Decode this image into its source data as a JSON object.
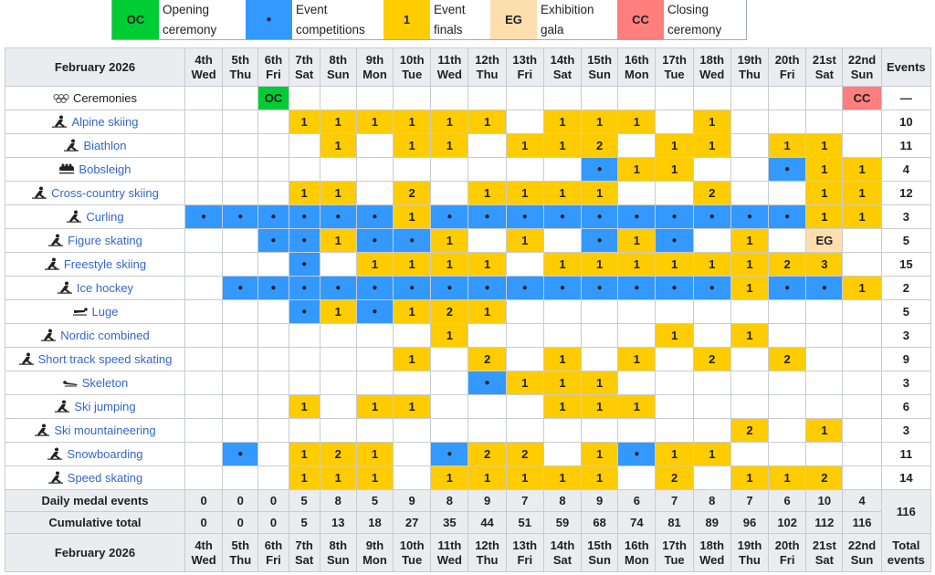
{
  "legend": [
    {
      "code": "OC",
      "line1": "Opening",
      "line2": "ceremony",
      "color": "#00cc33"
    },
    {
      "code": "●",
      "line1": "Event",
      "line2": "competitions",
      "color": "#3399ff"
    },
    {
      "code": "1",
      "line1": "Event",
      "line2": "finals",
      "color": "#ffcc00"
    },
    {
      "code": "EG",
      "line1": "Exhibition",
      "line2": "gala",
      "color": "#ffdead"
    },
    {
      "code": "CC",
      "line1": "Closing",
      "line2": "ceremony",
      "color": "#ff7f7f"
    }
  ],
  "month_label": "February 2026",
  "days": [
    {
      "d": "4th",
      "w": "Wed"
    },
    {
      "d": "5th",
      "w": "Thu"
    },
    {
      "d": "6th",
      "w": "Fri"
    },
    {
      "d": "7th",
      "w": "Sat"
    },
    {
      "d": "8th",
      "w": "Sun"
    },
    {
      "d": "9th",
      "w": "Mon"
    },
    {
      "d": "10th",
      "w": "Tue"
    },
    {
      "d": "11th",
      "w": "Wed"
    },
    {
      "d": "12th",
      "w": "Thu"
    },
    {
      "d": "13th",
      "w": "Fri"
    },
    {
      "d": "14th",
      "w": "Sat"
    },
    {
      "d": "15th",
      "w": "Sun"
    },
    {
      "d": "16th",
      "w": "Mon"
    },
    {
      "d": "17th",
      "w": "Tue"
    },
    {
      "d": "18th",
      "w": "Wed"
    },
    {
      "d": "19th",
      "w": "Thu"
    },
    {
      "d": "20th",
      "w": "Fri"
    },
    {
      "d": "21st",
      "w": "Sat"
    },
    {
      "d": "22nd",
      "w": "Sun"
    }
  ],
  "events_header": "Events",
  "total_events_header": {
    "l1": "Total",
    "l2": "events"
  },
  "sports": [
    {
      "name": "Ceremonies",
      "icon": "olympic-rings-icon",
      "link": false,
      "cells": [
        "",
        "",
        "OC",
        "",
        "",
        "",
        "",
        "",
        "",
        "",
        "",
        "",
        "",
        "",
        "",
        "",
        "",
        "",
        "CC"
      ],
      "total": "—"
    },
    {
      "name": "Alpine skiing",
      "icon": "alpine-skiing-icon",
      "link": true,
      "cells": [
        "",
        "",
        "",
        "1",
        "1",
        "1",
        "1",
        "1",
        "1",
        "",
        "1",
        "1",
        "1",
        "",
        "1",
        "",
        "",
        "",
        ""
      ],
      "total": "10"
    },
    {
      "name": "Biathlon",
      "icon": "biathlon-icon",
      "link": true,
      "cells": [
        "",
        "",
        "",
        "",
        "1",
        "",
        "1",
        "1",
        "",
        "1",
        "1",
        "2",
        "",
        "1",
        "1",
        "",
        "1",
        "1",
        ""
      ],
      "total": "11"
    },
    {
      "name": "Bobsleigh",
      "icon": "bobsleigh-icon",
      "link": true,
      "cells": [
        "",
        "",
        "",
        "",
        "",
        "",
        "",
        "",
        "",
        "",
        "",
        "●",
        "1",
        "1",
        "",
        "",
        "●",
        "1",
        "1"
      ],
      "total": "4"
    },
    {
      "name": "Cross-country skiing",
      "icon": "cross-country-skiing-icon",
      "link": true,
      "cells": [
        "",
        "",
        "",
        "1",
        "1",
        "",
        "2",
        "",
        "1",
        "1",
        "1",
        "1",
        "",
        "",
        "2",
        "",
        "",
        "1",
        "1"
      ],
      "total": "12"
    },
    {
      "name": "Curling",
      "icon": "curling-icon",
      "link": true,
      "cells": [
        "●",
        "●",
        "●",
        "●",
        "●",
        "●",
        "1",
        "●",
        "●",
        "●",
        "●",
        "●",
        "●",
        "●",
        "●",
        "●",
        "●",
        "1",
        "1"
      ],
      "total": "3"
    },
    {
      "name": "Figure skating",
      "icon": "figure-skating-icon",
      "link": true,
      "cells": [
        "",
        "",
        "●",
        "●",
        "1",
        "●",
        "●",
        "1",
        "",
        "1",
        "",
        "●",
        "1",
        "●",
        "",
        "1",
        "",
        "EG",
        ""
      ],
      "total": "5"
    },
    {
      "name": "Freestyle skiing",
      "icon": "freestyle-skiing-icon",
      "link": true,
      "cells": [
        "",
        "",
        "",
        "●",
        "",
        "1",
        "1",
        "1",
        "1",
        "",
        "1",
        "1",
        "1",
        "1",
        "1",
        "1",
        "2",
        "3",
        ""
      ],
      "total": "15"
    },
    {
      "name": "Ice hockey",
      "icon": "ice-hockey-icon",
      "link": true,
      "cells": [
        "",
        "●",
        "●",
        "●",
        "●",
        "●",
        "●",
        "●",
        "●",
        "●",
        "●",
        "●",
        "●",
        "●",
        "●",
        "1",
        "●",
        "●",
        "1"
      ],
      "total": "2"
    },
    {
      "name": "Luge",
      "icon": "luge-icon",
      "link": true,
      "cells": [
        "",
        "",
        "",
        "●",
        "1",
        "●",
        "1",
        "2",
        "1",
        "",
        "",
        "",
        "",
        "",
        "",
        "",
        "",
        "",
        ""
      ],
      "total": "5"
    },
    {
      "name": "Nordic combined",
      "icon": "nordic-combined-icon",
      "link": true,
      "cells": [
        "",
        "",
        "",
        "",
        "",
        "",
        "",
        "1",
        "",
        "",
        "",
        "",
        "",
        "1",
        "",
        "1",
        "",
        "",
        ""
      ],
      "total": "3"
    },
    {
      "name": "Short track speed skating",
      "icon": "short-track-icon",
      "link": true,
      "cells": [
        "",
        "",
        "",
        "",
        "",
        "",
        "1",
        "",
        "2",
        "",
        "1",
        "",
        "1",
        "",
        "2",
        "",
        "2",
        "",
        ""
      ],
      "total": "9"
    },
    {
      "name": "Skeleton",
      "icon": "skeleton-icon",
      "link": true,
      "cells": [
        "",
        "",
        "",
        "",
        "",
        "",
        "",
        "",
        "●",
        "1",
        "1",
        "1",
        "",
        "",
        "",
        "",
        "",
        "",
        ""
      ],
      "total": "3"
    },
    {
      "name": "Ski jumping",
      "icon": "ski-jumping-icon",
      "link": true,
      "cells": [
        "",
        "",
        "",
        "1",
        "",
        "1",
        "1",
        "",
        "",
        "",
        "1",
        "1",
        "1",
        "",
        "",
        "",
        "",
        "",
        ""
      ],
      "total": "6"
    },
    {
      "name": "Ski mountaineering",
      "icon": "ski-mountaineering-icon",
      "link": true,
      "cells": [
        "",
        "",
        "",
        "",
        "",
        "",
        "",
        "",
        "",
        "",
        "",
        "",
        "",
        "",
        "",
        "2",
        "",
        "1",
        ""
      ],
      "total": "3"
    },
    {
      "name": "Snowboarding",
      "icon": "snowboarding-icon",
      "link": true,
      "cells": [
        "",
        "●",
        "",
        "1",
        "2",
        "1",
        "",
        "●",
        "2",
        "2",
        "",
        "1",
        "●",
        "1",
        "1",
        "",
        "",
        "",
        ""
      ],
      "total": "11"
    },
    {
      "name": "Speed skating",
      "icon": "speed-skating-icon",
      "link": true,
      "cells": [
        "",
        "",
        "",
        "1",
        "1",
        "1",
        "",
        "1",
        "1",
        "1",
        "1",
        "1",
        "",
        "2",
        "",
        "1",
        "1",
        "2",
        ""
      ],
      "total": "14"
    }
  ],
  "daily_label": "Daily medal events",
  "daily": [
    "0",
    "0",
    "0",
    "5",
    "8",
    "5",
    "9",
    "8",
    "9",
    "7",
    "8",
    "9",
    "6",
    "7",
    "8",
    "7",
    "6",
    "10",
    "4"
  ],
  "cumulative_label": "Cumulative total",
  "cumulative": [
    "0",
    "0",
    "0",
    "5",
    "13",
    "18",
    "27",
    "35",
    "44",
    "51",
    "59",
    "68",
    "74",
    "81",
    "89",
    "96",
    "102",
    "112",
    "116"
  ],
  "grand_total": "116",
  "colors": {
    "final": "#ffcc00",
    "competition": "#3399ff",
    "opening": "#00cc33",
    "closing": "#ff7f7f",
    "gala": "#ffdead",
    "header": "#eaecf0",
    "link": "#3366cc"
  }
}
